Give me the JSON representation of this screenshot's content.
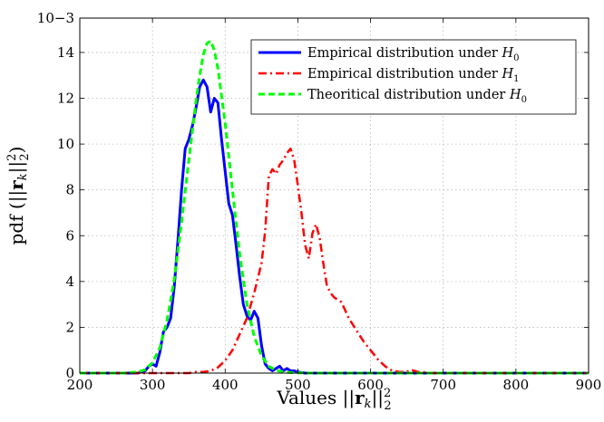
{
  "chart_data": {
    "type": "line",
    "xlabel": "Values ||r_k||²₂",
    "ylabel": "pdf (||r_k||²₂)",
    "exponent_label": "10−3",
    "xlim": [
      200,
      900
    ],
    "ylim": [
      0,
      15.5
    ],
    "xticks": [
      200,
      300,
      400,
      500,
      600,
      700,
      800,
      900
    ],
    "yticks": [
      0,
      2,
      4,
      6,
      8,
      10,
      12,
      14
    ],
    "grid": true,
    "legend_position": "top-right",
    "series": [
      {
        "name": "Empirical distribution under H0",
        "color": "#0000ff",
        "style": "solid",
        "x": [
          200,
          280,
          290,
          295,
          300,
          305,
          310,
          315,
          320,
          325,
          330,
          335,
          340,
          345,
          350,
          355,
          360,
          365,
          370,
          375,
          380,
          385,
          390,
          395,
          400,
          405,
          410,
          415,
          420,
          425,
          430,
          435,
          440,
          445,
          450,
          455,
          460,
          465,
          470,
          475,
          480,
          485,
          490,
          495,
          500,
          510,
          900
        ],
        "y": [
          0,
          0,
          0.1,
          0.3,
          0.4,
          0.3,
          0.9,
          1.8,
          2.0,
          2.4,
          3.8,
          5.8,
          8.0,
          9.8,
          10.2,
          10.8,
          11.6,
          12.5,
          12.8,
          12.5,
          11.4,
          12.0,
          11.8,
          10.2,
          8.8,
          7.4,
          6.9,
          5.6,
          4.2,
          3.0,
          2.5,
          2.3,
          2.7,
          2.4,
          1.2,
          0.4,
          0.2,
          0.1,
          0.2,
          0.3,
          0.1,
          0.2,
          0.1,
          0.1,
          0.05,
          0,
          0
        ]
      },
      {
        "name": "Empirical distribution under H1",
        "color": "#ff0000",
        "style": "dash-dot",
        "x": [
          200,
          350,
          360,
          370,
          380,
          390,
          400,
          410,
          420,
          430,
          440,
          450,
          455,
          460,
          465,
          470,
          475,
          480,
          485,
          490,
          495,
          500,
          505,
          510,
          515,
          520,
          525,
          530,
          535,
          540,
          545,
          550,
          560,
          570,
          580,
          590,
          600,
          610,
          620,
          630,
          640,
          650,
          655,
          660,
          665,
          670,
          680,
          700,
          900
        ],
        "y": [
          0,
          0,
          0.05,
          0.05,
          0.1,
          0.25,
          0.55,
          1.0,
          1.7,
          2.4,
          3.5,
          4.8,
          6.2,
          8.6,
          8.9,
          8.7,
          9.1,
          9.3,
          9.6,
          9.8,
          9.3,
          8.2,
          7.0,
          5.6,
          5.0,
          6.1,
          6.5,
          5.9,
          4.8,
          3.8,
          3.5,
          3.3,
          3.1,
          2.4,
          1.9,
          1.4,
          1.0,
          0.6,
          0.3,
          0.1,
          0.05,
          0.05,
          0.15,
          0.1,
          0.05,
          0.05,
          0,
          0,
          0
        ]
      },
      {
        "name": "Theoritical distribution under H0",
        "color": "#00ff00",
        "style": "dashed",
        "x": [
          200,
          260,
          280,
          290,
          300,
          310,
          320,
          330,
          340,
          350,
          360,
          365,
          370,
          375,
          380,
          385,
          390,
          400,
          410,
          420,
          430,
          440,
          450,
          460,
          470,
          480,
          490,
          500,
          520,
          900
        ],
        "y": [
          0,
          0,
          0.05,
          0.15,
          0.45,
          1.1,
          2.3,
          4.1,
          6.6,
          9.3,
          11.9,
          13.0,
          13.9,
          14.4,
          14.5,
          14.1,
          13.3,
          10.9,
          8.0,
          5.2,
          3.0,
          1.6,
          0.75,
          0.3,
          0.12,
          0.05,
          0.02,
          0.01,
          0,
          0
        ]
      }
    ]
  }
}
